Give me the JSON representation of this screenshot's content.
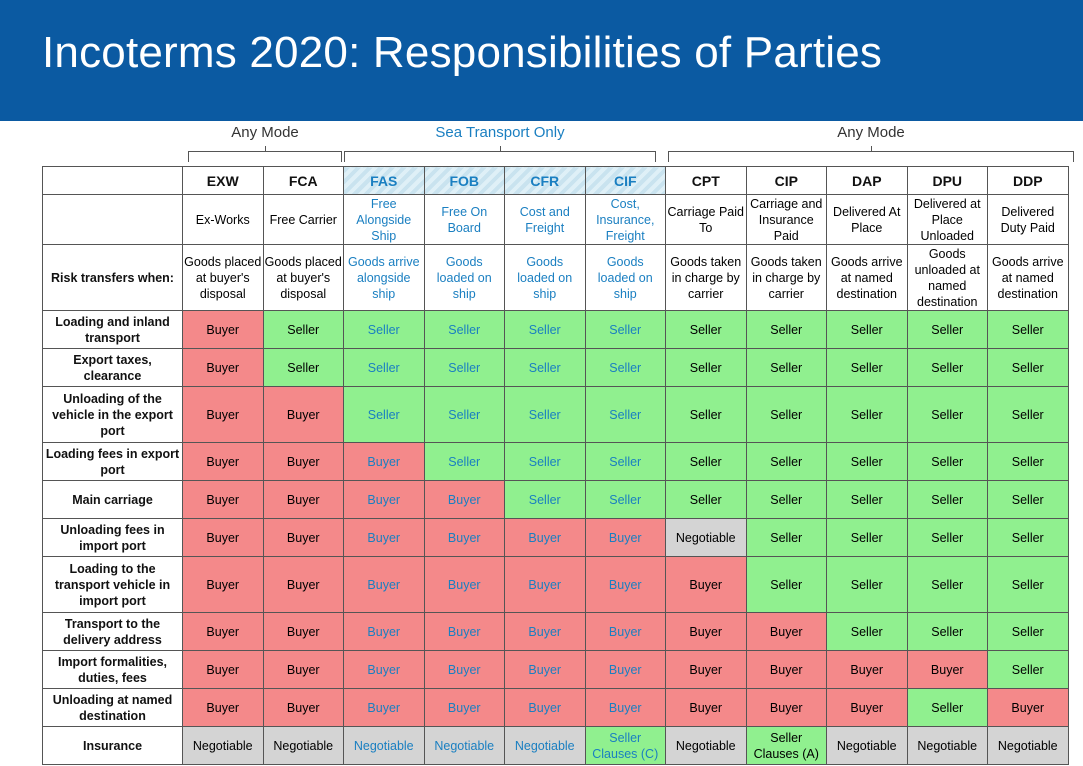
{
  "title": "Incoterms 2020: Responsibilities of Parties",
  "groups": [
    {
      "label": "Any Mode"
    },
    {
      "label": "Sea Transport Only"
    },
    {
      "label": "Any Mode"
    }
  ],
  "columns": [
    {
      "code": "EXW",
      "name": "Ex-Works",
      "risk": "Goods placed at buyer's disposal",
      "sea": false
    },
    {
      "code": "FCA",
      "name": "Free Carrier",
      "risk": "Goods placed at buyer's disposal",
      "sea": false
    },
    {
      "code": "FAS",
      "name": "Free Alongside Ship",
      "risk": "Goods arrive alongside ship",
      "sea": true
    },
    {
      "code": "FOB",
      "name": "Free On Board",
      "risk": "Goods loaded on ship",
      "sea": true
    },
    {
      "code": "CFR",
      "name": "Cost and Freight",
      "risk": "Goods loaded on ship",
      "sea": true
    },
    {
      "code": "CIF",
      "name": "Cost, Insurance, Freight",
      "risk": "Goods loaded on ship",
      "sea": true
    },
    {
      "code": "CPT",
      "name": "Carriage Paid To",
      "risk": "Goods taken in charge by carrier",
      "sea": false
    },
    {
      "code": "CIP",
      "name": "Carriage and Insurance Paid",
      "risk": "Goods taken in charge by carrier",
      "sea": false
    },
    {
      "code": "DAP",
      "name": "Delivered At Place",
      "risk": "Goods arrive at named destination",
      "sea": false
    },
    {
      "code": "DPU",
      "name": "Delivered at Place Unloaded",
      "risk": "Goods unloaded at named destination",
      "sea": false
    },
    {
      "code": "DDP",
      "name": "Delivered Duty Paid",
      "risk": "Goods arrive at named destination",
      "sea": false
    }
  ],
  "risk_row_label": "Risk transfers when:",
  "colors": {
    "buyer": "#f4898a",
    "seller": "#90f08f",
    "negotiable": "#d4d4d4",
    "header": "#0b5aa2",
    "sea_text": "#1a7fc1"
  },
  "rows": [
    {
      "label": "Loading and inland transport",
      "h": 38,
      "cells": [
        "Buyer",
        "Seller",
        "Seller",
        "Seller",
        "Seller",
        "Seller",
        "Seller",
        "Seller",
        "Seller",
        "Seller",
        "Seller"
      ]
    },
    {
      "label": "Export taxes, clearance",
      "h": 38,
      "cells": [
        "Buyer",
        "Seller",
        "Seller",
        "Seller",
        "Seller",
        "Seller",
        "Seller",
        "Seller",
        "Seller",
        "Seller",
        "Seller"
      ]
    },
    {
      "label": "Unloading of the vehicle in the export port",
      "h": 56,
      "cells": [
        "Buyer",
        "Buyer",
        "Seller",
        "Seller",
        "Seller",
        "Seller",
        "Seller",
        "Seller",
        "Seller",
        "Seller",
        "Seller"
      ]
    },
    {
      "label": "Loading fees in export port",
      "h": 38,
      "cells": [
        "Buyer",
        "Buyer",
        "Buyer",
        "Seller",
        "Seller",
        "Seller",
        "Seller",
        "Seller",
        "Seller",
        "Seller",
        "Seller"
      ]
    },
    {
      "label": "Main carriage",
      "h": 38,
      "cells": [
        "Buyer",
        "Buyer",
        "Buyer",
        "Buyer",
        "Seller",
        "Seller",
        "Seller",
        "Seller",
        "Seller",
        "Seller",
        "Seller"
      ]
    },
    {
      "label": "Unloading fees in import port",
      "h": 38,
      "cells": [
        "Buyer",
        "Buyer",
        "Buyer",
        "Buyer",
        "Buyer",
        "Buyer",
        "Negotiable",
        "Seller",
        "Seller",
        "Seller",
        "Seller"
      ]
    },
    {
      "label": "Loading to the transport vehicle in import port",
      "h": 56,
      "cells": [
        "Buyer",
        "Buyer",
        "Buyer",
        "Buyer",
        "Buyer",
        "Buyer",
        "Buyer",
        "Seller",
        "Seller",
        "Seller",
        "Seller"
      ]
    },
    {
      "label": "Transport to the delivery address",
      "h": 38,
      "cells": [
        "Buyer",
        "Buyer",
        "Buyer",
        "Buyer",
        "Buyer",
        "Buyer",
        "Buyer",
        "Buyer",
        "Seller",
        "Seller",
        "Seller"
      ]
    },
    {
      "label": "Import formalities, duties, fees",
      "h": 38,
      "cells": [
        "Buyer",
        "Buyer",
        "Buyer",
        "Buyer",
        "Buyer",
        "Buyer",
        "Buyer",
        "Buyer",
        "Buyer",
        "Buyer",
        "Seller"
      ]
    },
    {
      "label": "Unloading at named destination",
      "h": 38,
      "cells": [
        "Buyer",
        "Buyer",
        "Buyer",
        "Buyer",
        "Buyer",
        "Buyer",
        "Buyer",
        "Buyer",
        "Buyer",
        "Seller",
        "Buyer"
      ]
    },
    {
      "label": "Insurance",
      "h": 38,
      "cells": [
        "Negotiable",
        "Negotiable",
        "Negotiable",
        "Negotiable",
        "Negotiable",
        "Seller Clauses (C)",
        "Negotiable",
        "Seller Clauses (A)",
        "Negotiable",
        "Negotiable",
        "Negotiable"
      ]
    }
  ]
}
